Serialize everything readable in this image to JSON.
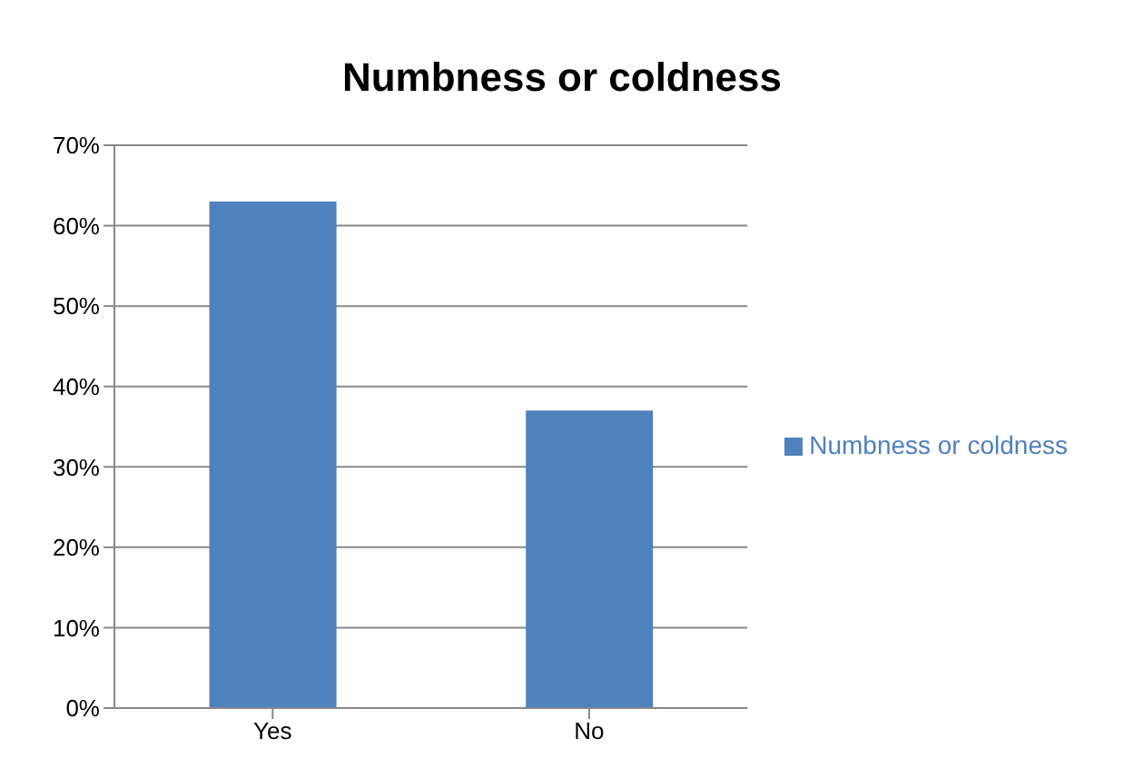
{
  "chart_data": {
    "type": "bar",
    "title": "Numbness or coldness",
    "categories": [
      "Yes",
      "No"
    ],
    "series": [
      {
        "name": "Numbness or coldness",
        "color": "#4f81bd",
        "values": [
          63,
          37
        ]
      }
    ],
    "ylim": [
      0,
      70
    ],
    "yticks": [
      {
        "value": 0,
        "label": "0%"
      },
      {
        "value": 10,
        "label": "10%"
      },
      {
        "value": 20,
        "label": "20%"
      },
      {
        "value": 30,
        "label": "30%"
      },
      {
        "value": 40,
        "label": "40%"
      },
      {
        "value": 50,
        "label": "50%"
      },
      {
        "value": 60,
        "label": "60%"
      },
      {
        "value": 70,
        "label": "70%"
      }
    ],
    "grid": "y",
    "legend": "right"
  }
}
